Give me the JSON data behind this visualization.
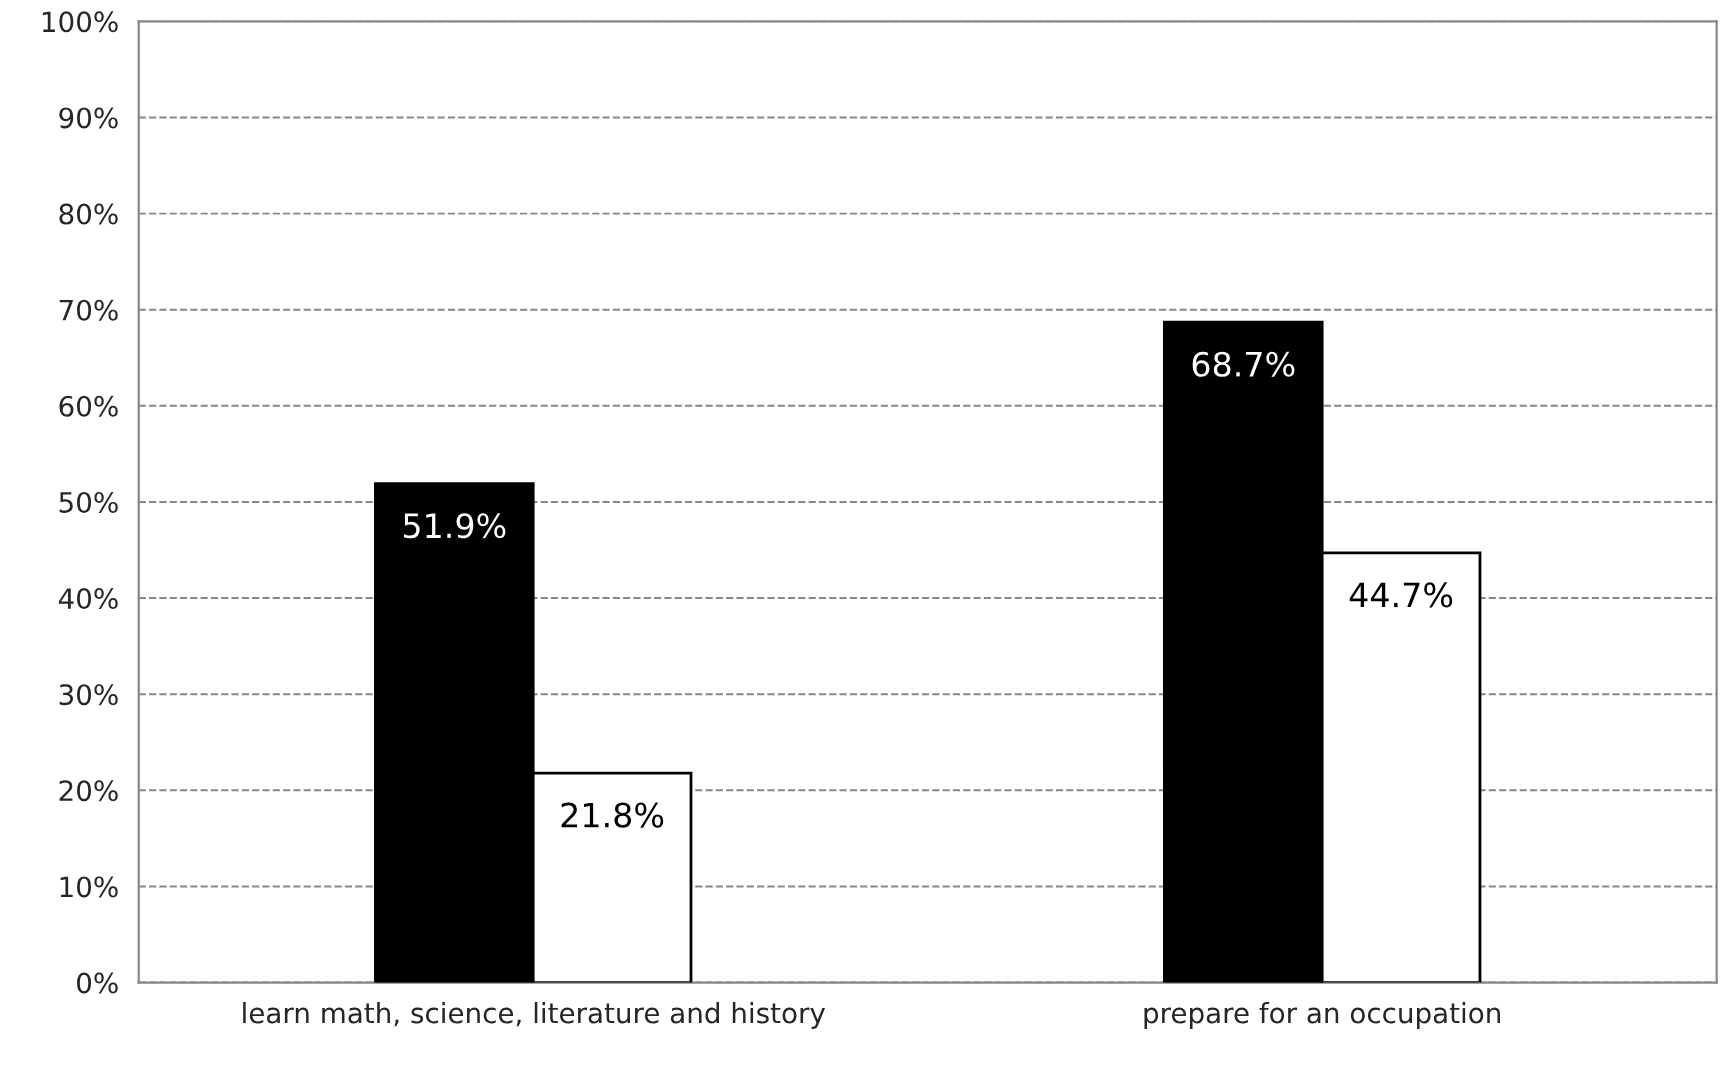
{
  "chart_data": {
    "type": "bar",
    "categories": [
      "learn math, science, literature and history",
      "prepare for an occupation"
    ],
    "series": [
      {
        "color": "#000000",
        "values": [
          51.9,
          68.7
        ],
        "value_labels": [
          "51.9%",
          "68.7%"
        ]
      },
      {
        "color": "#ffffff",
        "values": [
          21.8,
          44.7
        ],
        "value_labels": [
          "21.8%",
          "44.7%"
        ]
      }
    ],
    "ylim": [
      0,
      100
    ],
    "yticks": [
      {
        "value": 0,
        "label": "0%"
      },
      {
        "value": 10,
        "label": "10%"
      },
      {
        "value": 20,
        "label": "20%"
      },
      {
        "value": 30,
        "label": "30%"
      },
      {
        "value": 40,
        "label": "40%"
      },
      {
        "value": 50,
        "label": "50%"
      },
      {
        "value": 60,
        "label": "60%"
      },
      {
        "value": 70,
        "label": "70%"
      },
      {
        "value": 80,
        "label": "80%"
      },
      {
        "value": 90,
        "label": "90%"
      },
      {
        "value": 100,
        "label": "100%"
      }
    ],
    "grid": "y",
    "legend": false
  }
}
